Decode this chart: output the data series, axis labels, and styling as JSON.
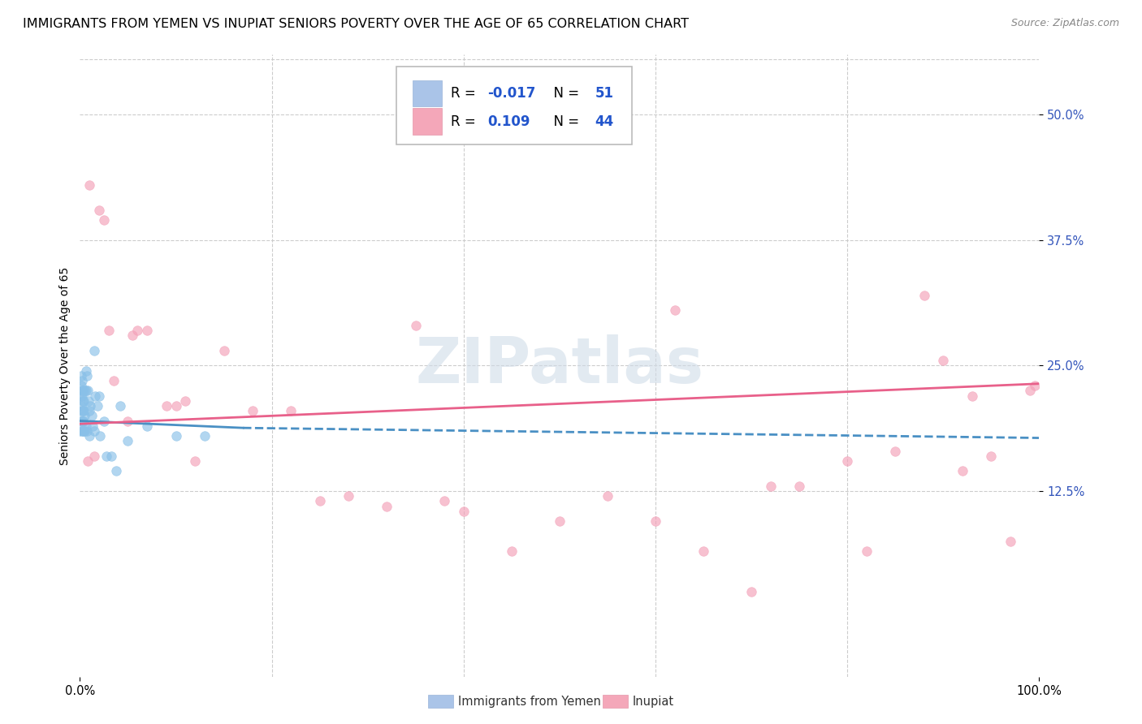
{
  "title": "IMMIGRANTS FROM YEMEN VS INUPIAT SENIORS POVERTY OVER THE AGE OF 65 CORRELATION CHART",
  "source": "Source: ZipAtlas.com",
  "ylabel": "Seniors Poverty Over the Age of 65",
  "ytick_labels": [
    "12.5%",
    "25.0%",
    "37.5%",
    "50.0%"
  ],
  "ytick_values": [
    0.125,
    0.25,
    0.375,
    0.5
  ],
  "xmin": 0.0,
  "xmax": 1.0,
  "ymin": -0.06,
  "ymax": 0.56,
  "legend_entry1": {
    "color": "#aac4e8",
    "R": "-0.017",
    "N": "51",
    "label": "Immigrants from Yemen"
  },
  "legend_entry2": {
    "color": "#f4a7b9",
    "R": "0.109",
    "N": "44",
    "label": "Inupiat"
  },
  "scatter_yemen_x": [
    0.0,
    0.001,
    0.001,
    0.001,
    0.001,
    0.001,
    0.002,
    0.002,
    0.002,
    0.002,
    0.002,
    0.002,
    0.003,
    0.003,
    0.003,
    0.003,
    0.003,
    0.004,
    0.004,
    0.004,
    0.004,
    0.005,
    0.005,
    0.005,
    0.006,
    0.006,
    0.006,
    0.007,
    0.007,
    0.008,
    0.009,
    0.01,
    0.01,
    0.011,
    0.012,
    0.013,
    0.015,
    0.015,
    0.016,
    0.018,
    0.02,
    0.021,
    0.025,
    0.028,
    0.033,
    0.038,
    0.042,
    0.05,
    0.07,
    0.1,
    0.13
  ],
  "scatter_yemen_y": [
    0.185,
    0.24,
    0.23,
    0.22,
    0.21,
    0.195,
    0.235,
    0.225,
    0.22,
    0.205,
    0.195,
    0.185,
    0.225,
    0.215,
    0.205,
    0.195,
    0.185,
    0.215,
    0.205,
    0.195,
    0.185,
    0.225,
    0.2,
    0.185,
    0.245,
    0.225,
    0.19,
    0.24,
    0.185,
    0.225,
    0.215,
    0.205,
    0.18,
    0.21,
    0.2,
    0.19,
    0.265,
    0.185,
    0.22,
    0.21,
    0.22,
    0.18,
    0.195,
    0.16,
    0.16,
    0.145,
    0.21,
    0.175,
    0.19,
    0.18,
    0.18
  ],
  "scatter_inupiat_x": [
    0.01,
    0.02,
    0.025,
    0.03,
    0.035,
    0.05,
    0.055,
    0.06,
    0.07,
    0.09,
    0.1,
    0.11,
    0.12,
    0.15,
    0.18,
    0.22,
    0.25,
    0.28,
    0.35,
    0.38,
    0.4,
    0.45,
    0.5,
    0.55,
    0.6,
    0.62,
    0.65,
    0.7,
    0.72,
    0.75,
    0.8,
    0.82,
    0.85,
    0.88,
    0.9,
    0.92,
    0.93,
    0.95,
    0.97,
    0.99,
    0.995,
    0.015,
    0.008,
    0.32
  ],
  "scatter_inupiat_y": [
    0.43,
    0.405,
    0.395,
    0.285,
    0.235,
    0.195,
    0.28,
    0.285,
    0.285,
    0.21,
    0.21,
    0.215,
    0.155,
    0.265,
    0.205,
    0.205,
    0.115,
    0.12,
    0.29,
    0.115,
    0.105,
    0.065,
    0.095,
    0.12,
    0.095,
    0.305,
    0.065,
    0.025,
    0.13,
    0.13,
    0.155,
    0.065,
    0.165,
    0.32,
    0.255,
    0.145,
    0.22,
    0.16,
    0.075,
    0.225,
    0.23,
    0.16,
    0.155,
    0.11
  ],
  "trend_yemen_x0": 0.0,
  "trend_yemen_x1": 1.0,
  "trend_yemen_y0": 0.195,
  "trend_yemen_y1": 0.178,
  "trend_inupiat_x0": 0.0,
  "trend_inupiat_x1": 1.0,
  "trend_inupiat_y0": 0.192,
  "trend_inupiat_y1": 0.232,
  "watermark": "ZIPatlas",
  "dot_size": 70,
  "dot_alpha": 0.65,
  "yemen_dot_color": "#89c0e8",
  "inupiat_dot_color": "#f4a0b8",
  "trend_yemen_color": "#4a90c4",
  "trend_inupiat_color": "#e8608a",
  "grid_color": "#cccccc",
  "background_color": "#ffffff",
  "title_fontsize": 11.5,
  "axis_label_fontsize": 10,
  "tick_fontsize": 10.5,
  "source_fontsize": 9,
  "legend_fontsize": 12
}
